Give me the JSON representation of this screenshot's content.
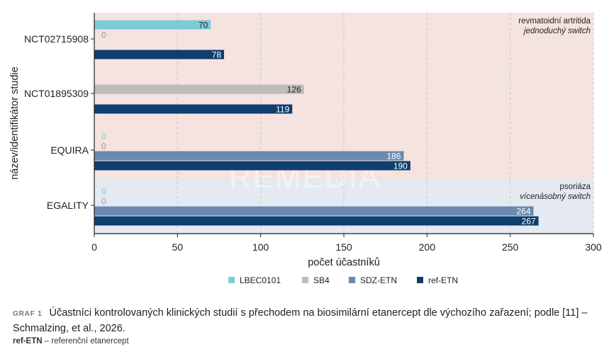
{
  "chart_data": {
    "type": "bar",
    "orientation": "horizontal",
    "categories": [
      "NCT02715908",
      "NCT01895309",
      "EQUIRA",
      "EGALITY"
    ],
    "series": [
      {
        "name": "LBEC0101",
        "color": "#7ecbd8",
        "values": [
          70,
          null,
          0,
          0
        ]
      },
      {
        "name": "SB4",
        "color": "#bcbcbc",
        "values": [
          0,
          126,
          0,
          0
        ]
      },
      {
        "name": "SDZ-ETN",
        "color": "#6b8aad",
        "values": [
          null,
          null,
          186,
          264
        ]
      },
      {
        "name": "ref-ETN",
        "color": "#0e3f6e",
        "values": [
          78,
          119,
          190,
          267
        ]
      }
    ],
    "xlabel": "počet účastníků",
    "ylabel": "název/identifikátor studie",
    "xlim": [
      0,
      300
    ],
    "xticks": [
      0,
      50,
      100,
      150,
      200,
      250,
      300
    ],
    "grid": "vertical dashed",
    "legend": "bottom",
    "regions": [
      {
        "title": "revmatoidní artritida",
        "subtitle": "jednoduchý switch",
        "categories": [
          "NCT02715908",
          "NCT01895309",
          "EQUIRA"
        ],
        "color": "#f5e3e0"
      },
      {
        "title": "psoriáza",
        "subtitle": "vícenásobný switch",
        "categories": [
          "EGALITY"
        ],
        "color": "#e4e9f2"
      }
    ],
    "watermark": "REMEDIA"
  },
  "caption": {
    "label": "GRAF 1",
    "text": "Účastníci kontrolovaných klinických studií s přechodem na biosimilární etanercept dle výchozího zařazení; podle [11] – Schmalzing, et al., 2026."
  },
  "note": {
    "abbr": "ref-ETN",
    "text": " – referenční etanercept"
  }
}
